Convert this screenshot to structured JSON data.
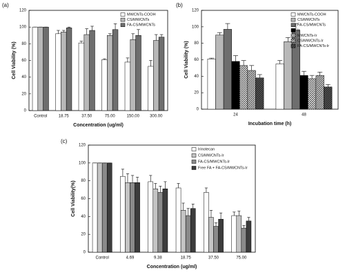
{
  "chart_data": [
    {
      "type": "bar",
      "label": "(a)",
      "x_label": "Concentration (ug/ml)",
      "y_label": "Cell Viability (%)",
      "categories": [
        "Control",
        "18.75",
        "37.50",
        "75.00",
        "150.00",
        "300.00"
      ],
      "ylim": [
        0,
        120
      ],
      "yticks": [
        0,
        20,
        40,
        60,
        80,
        100,
        120
      ],
      "legend": "upper right",
      "series": [
        {
          "name": "MWCNTs-COOH",
          "color": "#ffffff",
          "values": [
            100,
            92,
            81,
            61,
            58,
            53
          ],
          "errors": [
            0,
            4,
            2,
            1,
            5,
            7
          ]
        },
        {
          "name": "CS/MWCNTs",
          "color": "#b8b8b8",
          "values": [
            100,
            94,
            91,
            90,
            85,
            84
          ],
          "errors": [
            0,
            2,
            7,
            2,
            7,
            7
          ]
        },
        {
          "name": "FA-CS/MWCNTs",
          "color": "#6e6e6e",
          "values": [
            100,
            99,
            96,
            97,
            90,
            88
          ],
          "errors": [
            0,
            1,
            5,
            7,
            7,
            3
          ]
        }
      ]
    },
    {
      "type": "bar",
      "label": "(b)",
      "x_label": "Incubation time (h)",
      "y_label": "Cell Viability (%)",
      "categories": [
        "24",
        "48"
      ],
      "ylim": [
        0,
        120
      ],
      "yticks": [
        0,
        20,
        40,
        60,
        80,
        100,
        120
      ],
      "legend": "upper right",
      "series": [
        {
          "name": "MWCNTs-COOH",
          "color": "#ffffff",
          "values": [
            61,
            55
          ],
          "errors": [
            1,
            4
          ]
        },
        {
          "name": "CS/MWCNTs",
          "color": "#b8b8b8",
          "values": [
            90,
            82
          ],
          "errors": [
            3,
            5
          ]
        },
        {
          "name": "FA-CS/MWCNTs",
          "color": "#6e6e6e",
          "values": [
            97,
            96
          ],
          "errors": [
            7,
            8
          ]
        },
        {
          "name": "Ir",
          "color": "#000000",
          "values": [
            58,
            41
          ],
          "errors": [
            7,
            5
          ]
        },
        {
          "name": "MWCNTs-Ir",
          "color": "#ffffff",
          "hatch": "cross",
          "values": [
            53,
            37
          ],
          "errors": [
            6,
            4
          ]
        },
        {
          "name": "CS/MWCNTs-Ir",
          "color": "#c8c8c8",
          "hatch": "diagonal",
          "values": [
            47,
            41
          ],
          "errors": [
            6,
            4
          ]
        },
        {
          "name": "FA-CS/MWCNTs-Ir",
          "color": "#555555",
          "hatch": "diagonal",
          "values": [
            38,
            27
          ],
          "errors": [
            4,
            3
          ]
        }
      ]
    },
    {
      "type": "bar",
      "label": "(c)",
      "x_label": "Concentration (ug/ml)",
      "y_label": "Cell Viability(%)",
      "categories": [
        "Control",
        "4.69",
        "9.38",
        "18.75",
        "37.50",
        "75.00"
      ],
      "ylim": [
        0,
        120
      ],
      "yticks": [
        0,
        20,
        40,
        60,
        80,
        100,
        120
      ],
      "legend": "upper right",
      "series": [
        {
          "name": "Irinotecan",
          "color": "#ffffff",
          "values": [
            100,
            85,
            79,
            72,
            67,
            41
          ],
          "errors": [
            0,
            8,
            7,
            5,
            5,
            4
          ]
        },
        {
          "name": "CS/MWCNTs-Ir",
          "color": "#c4c4c4",
          "values": [
            100,
            78,
            71,
            47,
            39,
            41
          ],
          "errors": [
            0,
            10,
            6,
            8,
            8,
            5
          ]
        },
        {
          "name": "FA-CS/MWCNTs-Ir",
          "color": "#8a8a8a",
          "values": [
            100,
            78,
            67,
            41,
            29,
            27
          ],
          "errors": [
            0,
            8,
            7,
            8,
            4,
            3
          ]
        },
        {
          "name": "Free FA + FA-CS/MWCNTs-Ir",
          "color": "#3c3c3c",
          "values": [
            100,
            78,
            71,
            49,
            37,
            35
          ],
          "errors": [
            0,
            6,
            8,
            5,
            7,
            4
          ]
        }
      ]
    }
  ]
}
